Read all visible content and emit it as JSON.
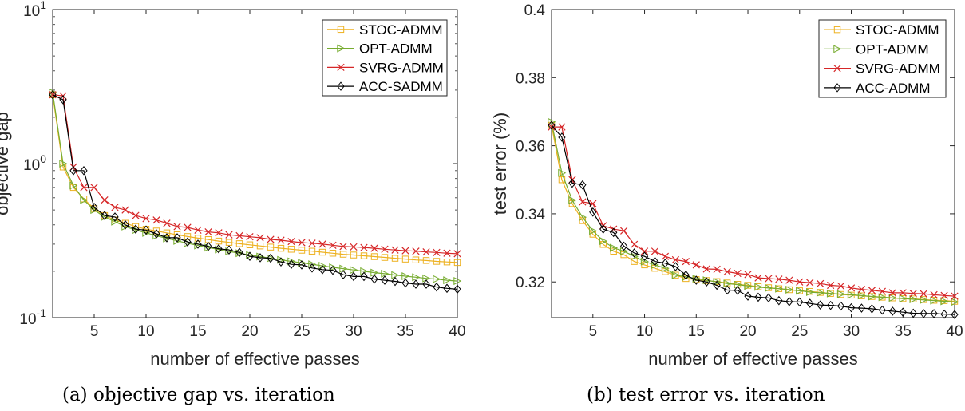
{
  "chart_data": [
    {
      "type": "line",
      "subplot": "a",
      "caption": "(a) objective gap vs. iteration",
      "xlabel": "number of effective passes",
      "ylabel": "objective gap",
      "yscale": "log",
      "xlim": [
        1,
        40
      ],
      "ylim": [
        0.1,
        10
      ],
      "xticks": [
        5,
        10,
        15,
        20,
        25,
        30,
        35,
        40
      ],
      "xtick_labels": [
        "5",
        "10",
        "15",
        "20",
        "25",
        "30",
        "35",
        "40"
      ],
      "yticks": [
        {
          "value": 0.1,
          "base": "10",
          "exp": "-1"
        },
        {
          "value": 1,
          "base": "10",
          "exp": "0"
        },
        {
          "value": 10,
          "base": "10",
          "exp": "1"
        }
      ],
      "legend_position": "top-right",
      "series": [
        {
          "name": "STOC-ADMM",
          "color": "#EDB120",
          "marker": "square",
          "x": [
            1,
            2,
            3,
            4,
            5,
            6,
            7,
            8,
            9,
            10,
            11,
            12,
            13,
            14,
            15,
            16,
            17,
            18,
            19,
            20,
            21,
            22,
            23,
            24,
            25,
            26,
            27,
            28,
            29,
            30,
            31,
            32,
            33,
            34,
            35,
            36,
            37,
            38,
            39,
            40
          ],
          "y": [
            2.8,
            0.95,
            0.7,
            0.59,
            0.51,
            0.46,
            0.43,
            0.41,
            0.39,
            0.375,
            0.365,
            0.355,
            0.345,
            0.336,
            0.328,
            0.321,
            0.314,
            0.308,
            0.302,
            0.297,
            0.292,
            0.287,
            0.282,
            0.278,
            0.274,
            0.27,
            0.266,
            0.262,
            0.258,
            0.255,
            0.252,
            0.249,
            0.246,
            0.243,
            0.24,
            0.237,
            0.235,
            0.232,
            0.23,
            0.228
          ]
        },
        {
          "name": "OPT-ADMM",
          "color": "#77AC30",
          "marker": "triangle-right",
          "x": [
            1,
            2,
            3,
            4,
            5,
            6,
            7,
            8,
            9,
            10,
            11,
            12,
            13,
            14,
            15,
            16,
            17,
            18,
            19,
            20,
            21,
            22,
            23,
            24,
            25,
            26,
            27,
            28,
            29,
            30,
            31,
            32,
            33,
            34,
            35,
            36,
            37,
            38,
            39,
            40
          ],
          "y": [
            2.9,
            1.0,
            0.72,
            0.58,
            0.5,
            0.45,
            0.42,
            0.39,
            0.37,
            0.355,
            0.34,
            0.327,
            0.315,
            0.304,
            0.294,
            0.285,
            0.277,
            0.269,
            0.262,
            0.255,
            0.249,
            0.243,
            0.237,
            0.232,
            0.227,
            0.222,
            0.217,
            0.212,
            0.208,
            0.204,
            0.2,
            0.196,
            0.193,
            0.189,
            0.186,
            0.183,
            0.18,
            0.178,
            0.175,
            0.173
          ]
        },
        {
          "name": "SVRG-ADMM",
          "color": "#D62728",
          "marker": "x",
          "x": [
            1,
            2,
            3,
            4,
            5,
            6,
            7,
            8,
            9,
            10,
            11,
            12,
            13,
            14,
            15,
            16,
            17,
            18,
            19,
            20,
            21,
            22,
            23,
            24,
            25,
            26,
            27,
            28,
            29,
            30,
            31,
            32,
            33,
            34,
            35,
            36,
            37,
            38,
            39,
            40
          ],
          "y": [
            2.8,
            2.75,
            0.95,
            0.7,
            0.7,
            0.58,
            0.52,
            0.5,
            0.46,
            0.44,
            0.43,
            0.41,
            0.39,
            0.385,
            0.37,
            0.36,
            0.355,
            0.345,
            0.34,
            0.335,
            0.33,
            0.322,
            0.318,
            0.312,
            0.307,
            0.304,
            0.3,
            0.295,
            0.29,
            0.288,
            0.285,
            0.282,
            0.278,
            0.275,
            0.272,
            0.27,
            0.267,
            0.265,
            0.262,
            0.26
          ]
        },
        {
          "name": "ACC-SADMM",
          "color": "#000000",
          "marker": "diamond",
          "x": [
            1,
            2,
            3,
            4,
            5,
            6,
            7,
            8,
            9,
            10,
            11,
            12,
            13,
            14,
            15,
            16,
            17,
            18,
            19,
            20,
            21,
            22,
            23,
            24,
            25,
            26,
            27,
            28,
            29,
            30,
            31,
            32,
            33,
            34,
            35,
            36,
            37,
            38,
            39,
            40
          ],
          "y": [
            2.8,
            2.6,
            0.9,
            0.9,
            0.52,
            0.46,
            0.45,
            0.4,
            0.375,
            0.37,
            0.35,
            0.33,
            0.33,
            0.31,
            0.3,
            0.29,
            0.28,
            0.275,
            0.265,
            0.25,
            0.245,
            0.243,
            0.23,
            0.222,
            0.22,
            0.21,
            0.205,
            0.203,
            0.19,
            0.185,
            0.185,
            0.178,
            0.175,
            0.172,
            0.168,
            0.165,
            0.165,
            0.158,
            0.155,
            0.153
          ]
        }
      ]
    },
    {
      "type": "line",
      "subplot": "b",
      "caption": "(b) test error vs. iteration",
      "xlabel": "number of effective passes",
      "ylabel": "test error (%)",
      "yscale": "linear",
      "xlim": [
        1,
        40
      ],
      "ylim": [
        0.3095,
        0.4
      ],
      "xticks": [
        5,
        10,
        15,
        20,
        25,
        30,
        35,
        40
      ],
      "xtick_labels": [
        "5",
        "10",
        "15",
        "20",
        "25",
        "30",
        "35",
        "40"
      ],
      "yticks": [
        {
          "value": 0.32,
          "label": "0.32"
        },
        {
          "value": 0.34,
          "label": "0.34"
        },
        {
          "value": 0.36,
          "label": "0.36"
        },
        {
          "value": 0.38,
          "label": "0.38"
        },
        {
          "value": 0.4,
          "label": "0.4"
        }
      ],
      "legend_position": "top-right",
      "series": [
        {
          "name": "STOC-ADMM",
          "color": "#EDB120",
          "marker": "square",
          "x": [
            1,
            2,
            3,
            4,
            5,
            6,
            7,
            8,
            9,
            10,
            11,
            12,
            13,
            14,
            15,
            16,
            17,
            18,
            19,
            20,
            21,
            22,
            23,
            24,
            25,
            26,
            27,
            28,
            29,
            30,
            31,
            32,
            33,
            34,
            35,
            36,
            37,
            38,
            39,
            40
          ],
          "y": [
            0.366,
            0.35,
            0.343,
            0.338,
            0.334,
            0.331,
            0.329,
            0.328,
            0.326,
            0.325,
            0.324,
            0.323,
            0.322,
            0.321,
            0.3207,
            0.3204,
            0.3201,
            0.3197,
            0.3193,
            0.319,
            0.3186,
            0.3183,
            0.318,
            0.3177,
            0.3174,
            0.3172,
            0.3169,
            0.3166,
            0.3163,
            0.3161,
            0.3159,
            0.3157,
            0.3155,
            0.3153,
            0.3151,
            0.315,
            0.3148,
            0.3146,
            0.3145,
            0.3143
          ]
        },
        {
          "name": "OPT-ADMM",
          "color": "#77AC30",
          "marker": "triangle-right",
          "x": [
            1,
            2,
            3,
            4,
            5,
            6,
            7,
            8,
            9,
            10,
            11,
            12,
            13,
            14,
            15,
            16,
            17,
            18,
            19,
            20,
            21,
            22,
            23,
            24,
            25,
            26,
            27,
            28,
            29,
            30,
            31,
            32,
            33,
            34,
            35,
            36,
            37,
            38,
            39,
            40
          ],
          "y": [
            0.367,
            0.352,
            0.344,
            0.339,
            0.335,
            0.332,
            0.33,
            0.329,
            0.3275,
            0.326,
            0.325,
            0.324,
            0.322,
            0.3215,
            0.321,
            0.3205,
            0.32,
            0.3195,
            0.3192,
            0.3188,
            0.3185,
            0.3182,
            0.318,
            0.3177,
            0.3174,
            0.317,
            0.3168,
            0.3166,
            0.3164,
            0.3162,
            0.316,
            0.3157,
            0.3155,
            0.3153,
            0.3151,
            0.3149,
            0.3147,
            0.3145,
            0.3143,
            0.3141
          ]
        },
        {
          "name": "SVRG-ADMM",
          "color": "#D62728",
          "marker": "x",
          "x": [
            1,
            2,
            3,
            4,
            5,
            6,
            7,
            8,
            9,
            10,
            11,
            12,
            13,
            14,
            15,
            16,
            17,
            18,
            19,
            20,
            21,
            22,
            23,
            24,
            25,
            26,
            27,
            28,
            29,
            30,
            31,
            32,
            33,
            34,
            35,
            36,
            37,
            38,
            39,
            40
          ],
          "y": [
            0.3655,
            0.3655,
            0.35,
            0.3435,
            0.343,
            0.3365,
            0.3355,
            0.335,
            0.331,
            0.329,
            0.329,
            0.3275,
            0.3265,
            0.326,
            0.325,
            0.3238,
            0.3237,
            0.323,
            0.3225,
            0.3222,
            0.3212,
            0.321,
            0.3208,
            0.3205,
            0.32,
            0.3198,
            0.3195,
            0.319,
            0.3188,
            0.3182,
            0.3178,
            0.3175,
            0.3172,
            0.3168,
            0.3168,
            0.3166,
            0.3165,
            0.3162,
            0.316,
            0.3158
          ]
        },
        {
          "name": "ACC-ADMM",
          "color": "#000000",
          "marker": "diamond",
          "x": [
            1,
            2,
            3,
            4,
            5,
            6,
            7,
            8,
            9,
            10,
            11,
            12,
            13,
            14,
            15,
            16,
            17,
            18,
            19,
            20,
            21,
            22,
            23,
            24,
            25,
            26,
            27,
            28,
            29,
            30,
            31,
            32,
            33,
            34,
            35,
            36,
            37,
            38,
            39,
            40
          ],
          "y": [
            0.366,
            0.3625,
            0.349,
            0.3485,
            0.3405,
            0.3355,
            0.3345,
            0.3305,
            0.3285,
            0.3275,
            0.326,
            0.3255,
            0.3245,
            0.322,
            0.3205,
            0.32,
            0.319,
            0.3176,
            0.3175,
            0.3158,
            0.3155,
            0.3153,
            0.3145,
            0.3142,
            0.3141,
            0.3137,
            0.3132,
            0.3131,
            0.3129,
            0.3124,
            0.3123,
            0.3121,
            0.3117,
            0.3114,
            0.3111,
            0.3108,
            0.3107,
            0.3107,
            0.3105,
            0.3104
          ]
        }
      ]
    }
  ]
}
